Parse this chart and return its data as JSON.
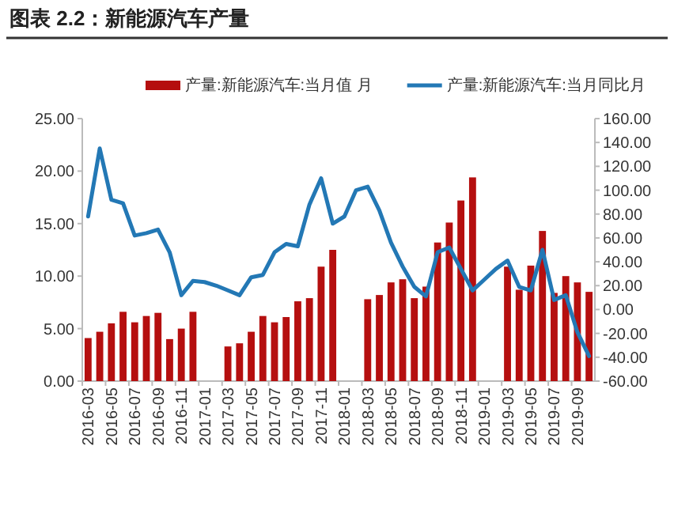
{
  "chart_data": {
    "type": "bar",
    "title": "图表 2.2：新能源汽车产量",
    "categories": [
      "2016-03",
      null,
      "2016-05",
      null,
      "2016-07",
      null,
      "2016-09",
      null,
      "2016-11",
      null,
      "2017-01",
      null,
      "2017-03",
      null,
      "2017-05",
      null,
      "2017-07",
      null,
      "2017-09",
      null,
      "2017-11",
      null,
      "2018-01",
      null,
      "2018-03",
      null,
      "2018-05",
      null,
      "2018-07",
      null,
      "2018-09",
      null,
      "2018-11",
      null,
      "2019-01",
      null,
      "2019-03",
      null,
      "2019-05",
      null,
      "2019-07",
      null,
      "2019-09",
      null
    ],
    "series": [
      {
        "name": "产量:新能源汽车:当月值 月",
        "color": "#b50f0f",
        "values": [
          4.1,
          4.7,
          5.5,
          6.6,
          5.6,
          6.2,
          6.5,
          4.0,
          5.0,
          6.6,
          null,
          null,
          3.3,
          3.6,
          4.7,
          6.2,
          5.6,
          6.1,
          7.6,
          7.9,
          10.9,
          12.5,
          null,
          null,
          7.8,
          8.2,
          9.4,
          9.7,
          7.9,
          9.0,
          13.2,
          15.1,
          17.2,
          19.4,
          null,
          null,
          10.9,
          8.7,
          11.0,
          14.3,
          8.4,
          10.0,
          9.4,
          8.5
        ]
      },
      {
        "name": "产量:新能源汽车:当月同比月",
        "type": "line",
        "axis": "y2",
        "color": "#2378b5",
        "values": [
          78,
          135,
          92,
          89,
          62,
          64,
          67,
          48,
          12,
          24,
          23,
          20,
          16,
          12,
          27,
          29,
          48,
          55,
          53,
          88,
          110,
          72,
          78,
          100,
          103,
          83,
          56,
          36,
          19,
          11,
          48,
          52,
          34,
          16,
          25,
          34,
          41,
          19,
          16,
          50,
          8,
          12,
          -19,
          -39
        ]
      }
    ],
    "ylim": [
      0,
      25
    ],
    "yticks": [
      {
        "value": 0,
        "label": "0.00"
      },
      {
        "value": 5,
        "label": "5.00"
      },
      {
        "value": 10,
        "label": "10.00"
      },
      {
        "value": 15,
        "label": "15.00"
      },
      {
        "value": 20,
        "label": "20.00"
      },
      {
        "value": 25,
        "label": "25.00"
      }
    ],
    "y2lim": [
      -60,
      160
    ],
    "y2ticks": [
      {
        "value": -60,
        "label": "-60.00"
      },
      {
        "value": -40,
        "label": "-40.00"
      },
      {
        "value": -20,
        "label": "-20.00"
      },
      {
        "value": 0,
        "label": "0.00"
      },
      {
        "value": 20,
        "label": "20.00"
      },
      {
        "value": 40,
        "label": "40.00"
      },
      {
        "value": 60,
        "label": "60.00"
      },
      {
        "value": 80,
        "label": "80.00"
      },
      {
        "value": 100,
        "label": "100.00"
      },
      {
        "value": 120,
        "label": "120.00"
      },
      {
        "value": 140,
        "label": "140.00"
      },
      {
        "value": 160,
        "label": "160.00"
      }
    ],
    "legend": "top",
    "grid": false
  }
}
